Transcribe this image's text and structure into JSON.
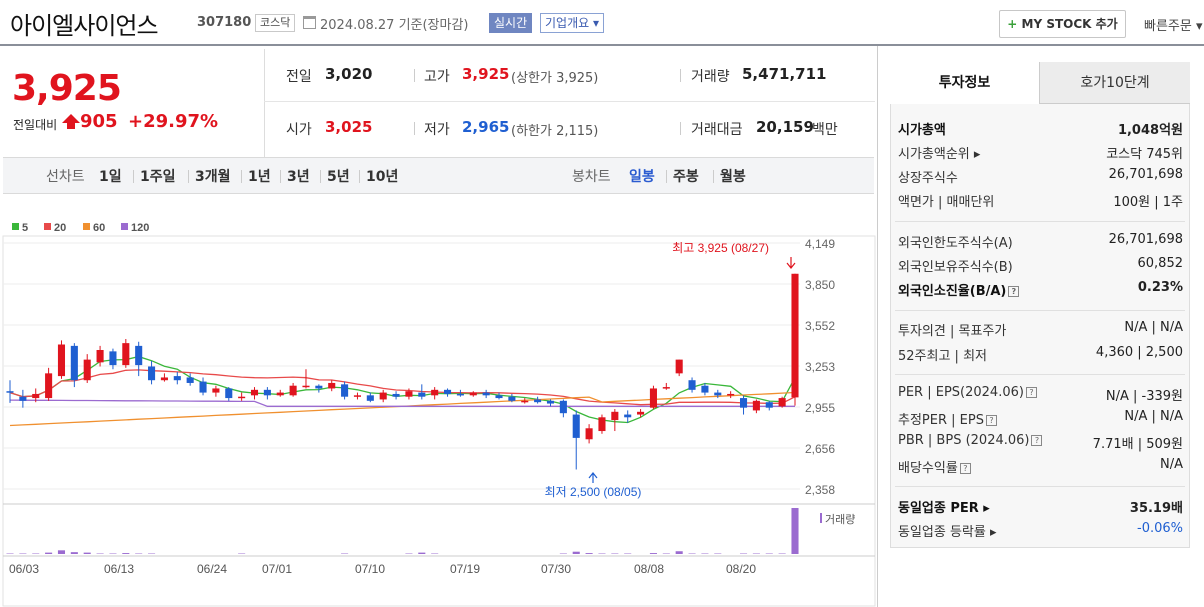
{
  "header": {
    "stock_name": "아이엘사이언스",
    "stock_code": "307180",
    "market": "코스닥",
    "date_text": "2024.08.27  기준(장마감)",
    "realtime_label": "실시간",
    "company_label": "기업개요 ▾",
    "mystock_label": "MY STOCK 추가",
    "mystock_plus": "+",
    "quick_order": "빠른주문 ▾"
  },
  "summary": {
    "price": "3,925",
    "change_label": "전일대비",
    "change_value": "905",
    "change_pct": "+29.97%",
    "prev_label": "전일",
    "prev": "3,020",
    "high_label": "고가",
    "high": "3,925",
    "upper_label": "(상한가 3,925)",
    "volume_label": "거래량",
    "volume": "5,471,711",
    "open_label": "시가",
    "open": "3,025",
    "low_label": "저가",
    "low": "2,965",
    "lower_label": "(하한가 2,115)",
    "amount_label": "거래대금",
    "amount": "20,159",
    "amount_unit": "백만"
  },
  "range_tabs": {
    "label": "선차트",
    "items": [
      "1일",
      "1주일",
      "3개월",
      "1년",
      "3년",
      "5년",
      "10년"
    ]
  },
  "candle_tabs": {
    "label": "봉차트",
    "items": [
      "일봉",
      "주봉",
      "월봉"
    ],
    "active": "일봉"
  },
  "chart": {
    "ma_legend": [
      {
        "label": "5",
        "color": "#3ab73a"
      },
      {
        "label": "20",
        "color": "#e84a4a"
      },
      {
        "label": "60",
        "color": "#f0902f"
      },
      {
        "label": "120",
        "color": "#9b6bd0"
      }
    ],
    "y_ticks": [
      "4,149",
      "3,850",
      "3,552",
      "3,253",
      "2,955",
      "2,656",
      "2,358"
    ],
    "x_ticks": [
      "06/03",
      "06/13",
      "06/24",
      "07/01",
      "07/10",
      "07/19",
      "07/30",
      "08/08",
      "08/20"
    ],
    "high_annot": "최고 3,925 (08/27)",
    "low_annot": "최저 2,500 (08/05)",
    "volume_label": "거래량"
  },
  "chart_data": {
    "type": "candlestick",
    "ylim": [
      2358,
      4149
    ],
    "candles": [
      [
        3070,
        3060,
        2985,
        3150
      ],
      [
        3030,
        3000,
        2950,
        3080
      ],
      [
        3020,
        3050,
        2990,
        3090
      ],
      [
        3020,
        3200,
        3000,
        3240
      ],
      [
        3180,
        3410,
        3160,
        3440
      ],
      [
        3400,
        3150,
        3100,
        3420
      ],
      [
        3150,
        3300,
        3130,
        3340
      ],
      [
        3280,
        3370,
        3250,
        3400
      ],
      [
        3360,
        3260,
        3230,
        3380
      ],
      [
        3260,
        3420,
        3240,
        3450
      ],
      [
        3400,
        3260,
        3180,
        3430
      ],
      [
        3250,
        3150,
        3120,
        3290
      ],
      [
        3150,
        3170,
        3140,
        3200
      ],
      [
        3180,
        3150,
        3120,
        3210
      ],
      [
        3170,
        3130,
        3110,
        3200
      ],
      [
        3140,
        3060,
        3040,
        3170
      ],
      [
        3060,
        3090,
        3030,
        3110
      ],
      [
        3090,
        3020,
        3000,
        3100
      ],
      [
        3020,
        3030,
        3000,
        3060
      ],
      [
        3040,
        3080,
        3010,
        3100
      ],
      [
        3080,
        3040,
        3010,
        3100
      ],
      [
        3040,
        3060,
        3030,
        3080
      ],
      [
        3040,
        3110,
        3030,
        3130
      ],
      [
        3100,
        3110,
        3090,
        3230
      ],
      [
        3110,
        3090,
        3060,
        3120
      ],
      [
        3090,
        3130,
        3070,
        3150
      ],
      [
        3120,
        3030,
        3010,
        3140
      ],
      [
        3030,
        3040,
        3010,
        3060
      ],
      [
        3040,
        3000,
        2990,
        3060
      ],
      [
        3010,
        3060,
        2990,
        3080
      ],
      [
        3050,
        3030,
        3010,
        3070
      ],
      [
        3030,
        3070,
        3010,
        3090
      ],
      [
        3060,
        3030,
        3010,
        3120
      ],
      [
        3040,
        3080,
        3010,
        3100
      ],
      [
        3080,
        3050,
        3030,
        3090
      ],
      [
        3050,
        3040,
        3030,
        3080
      ],
      [
        3040,
        3060,
        3030,
        3070
      ],
      [
        3060,
        3040,
        3020,
        3080
      ],
      [
        3040,
        3020,
        3010,
        3060
      ],
      [
        3030,
        3000,
        2990,
        3050
      ],
      [
        3000,
        3000,
        2980,
        3020
      ],
      [
        3010,
        2990,
        2980,
        3030
      ],
      [
        3000,
        2980,
        2960,
        3010
      ],
      [
        3000,
        2910,
        2880,
        3010
      ],
      [
        2900,
        2730,
        2500,
        2930
      ],
      [
        2720,
        2800,
        2690,
        2830
      ],
      [
        2780,
        2880,
        2760,
        2900
      ],
      [
        2860,
        2920,
        2780,
        2940
      ],
      [
        2900,
        2880,
        2840,
        2930
      ],
      [
        2900,
        2920,
        2880,
        2940
      ],
      [
        2950,
        3090,
        2940,
        3110
      ],
      [
        3090,
        3100,
        3080,
        3130
      ],
      [
        3200,
        3300,
        3180,
        3300
      ],
      [
        3150,
        3080,
        3060,
        3170
      ],
      [
        3110,
        3060,
        3040,
        3130
      ],
      [
        3060,
        3040,
        3020,
        3080
      ],
      [
        3040,
        3050,
        3020,
        3070
      ],
      [
        3020,
        2950,
        2900,
        3040
      ],
      [
        2930,
        3000,
        2910,
        3010
      ],
      [
        2990,
        2950,
        2930,
        3000
      ],
      [
        2960,
        3020,
        2950,
        3030
      ],
      [
        3025,
        3925,
        2965,
        3925
      ]
    ],
    "volume": [
      0.01,
      0.01,
      0.01,
      0.03,
      0.08,
      0.04,
      0.03,
      0.01,
      0.01,
      0.02,
      0.01,
      0.01,
      0,
      0,
      0,
      0,
      0,
      0,
      0.01,
      0,
      0,
      0,
      0,
      0,
      0,
      0,
      0.01,
      0,
      0,
      0,
      0,
      0.01,
      0.03,
      0.01,
      0,
      0,
      0,
      0,
      0,
      0,
      0,
      0,
      0,
      0.01,
      0.05,
      0.02,
      0.01,
      0.01,
      0.01,
      0,
      0.02,
      0.01,
      0.06,
      0.01,
      0.01,
      0.01,
      0,
      0.01,
      0.01,
      0.01,
      0.01,
      1.0
    ]
  },
  "invest": {
    "tabs": [
      "투자정보",
      "호가10단계"
    ],
    "rows": [
      {
        "k": "시가총액",
        "v": "1,048억원",
        "bold": true
      },
      {
        "k": "시가총액순위 ▸",
        "v": "코스닥 745위"
      },
      {
        "k": "상장주식수",
        "v": "26,701,698"
      },
      {
        "k": "액면가 | 매매단위",
        "v": "100원 | 1주"
      },
      {
        "k": "외국인한도주식수(A)",
        "v": "26,701,698"
      },
      {
        "k": "외국인보유주식수(B)",
        "v": "60,852"
      },
      {
        "k": "외국인소진율(B/A)",
        "v": "0.23%",
        "bold": true,
        "q": true
      },
      {
        "k": "투자의견 | 목표주가",
        "v": "N/A | N/A"
      },
      {
        "k": "52주최고 | 최저",
        "v": "4,360 | 2,500"
      },
      {
        "k": "PER | EPS(2024.06)",
        "v": "N/A | -339원",
        "q": true
      },
      {
        "k": "추정PER | EPS",
        "v": "N/A | N/A",
        "q": true
      },
      {
        "k": "PBR | BPS (2024.06)",
        "v": "7.71배 | 509원",
        "q": true
      },
      {
        "k": "배당수익률",
        "v": "N/A",
        "q": true
      },
      {
        "k": "동일업종 PER ▸",
        "v": "35.19배",
        "bold": true
      },
      {
        "k": "동일업종 등락률 ▸",
        "v": "-0.06%",
        "blue": true
      }
    ]
  }
}
